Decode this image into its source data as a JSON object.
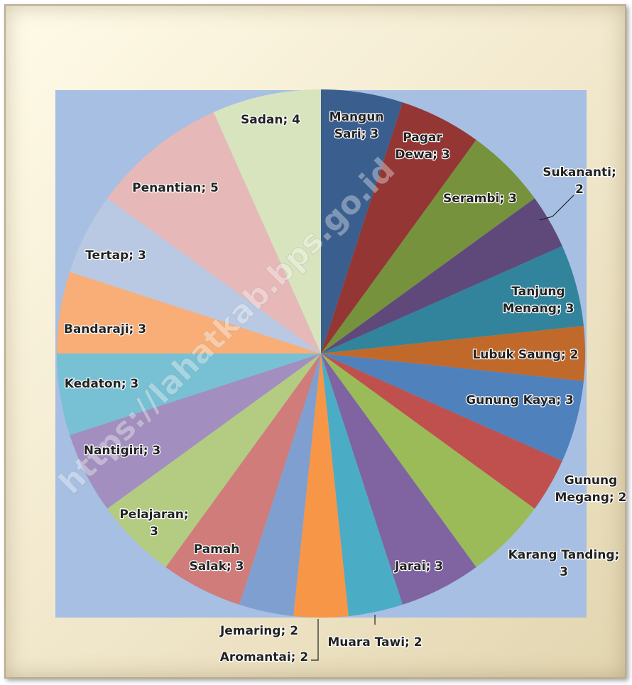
{
  "chart_data": {
    "type": "pie",
    "categories": [
      "Mangun Sari",
      "Pagar Dewa",
      "Serambi",
      "Sukananti",
      "Tanjung Menang",
      "Lubuk Saung",
      "Gunung Kaya",
      "Gunung Megang",
      "Karang Tanding",
      "Jarai",
      "Muara Tawi",
      "Aromantai",
      "Jemaring",
      "Pamah Salak",
      "Pelajaran",
      "Nantigiri",
      "Kedaton",
      "Bandaraji",
      "Tertap",
      "Penantian",
      "Sadan"
    ],
    "values": [
      3,
      3,
      3,
      2,
      3,
      2,
      3,
      2,
      3,
      3,
      2,
      2,
      2,
      3,
      3,
      3,
      3,
      3,
      3,
      5,
      4
    ],
    "value_labels": [
      "Mangun Sari; 3",
      "Pagar Dewa; 3",
      "Serambi; 3",
      "Sukananti; 2",
      "Tanjung Menang; 3",
      "Lubuk Saung; 2",
      "Gunung Kaya; 3",
      "Gunung Megang; 2",
      "Karang Tanding; 3",
      "Jarai; 3",
      "Muara Tawi; 2",
      "Aromantai; 2",
      "Jemaring; 2",
      "Pamah Salak; 3",
      "Pelajaran; 3",
      "Nantigiri; 3",
      "Kedaton; 3",
      "Bandaraji; 3",
      "Tertap; 3",
      "Penantian; 5",
      "Sadan; 4"
    ],
    "colors": [
      "#3a5f8f",
      "#943634",
      "#76923c",
      "#5f497a",
      "#31849b",
      "#c0692b",
      "#4f81bd",
      "#c0504d",
      "#9bbb59",
      "#8064a2",
      "#4bacc6",
      "#f79646",
      "#7f9fd0",
      "#d07c7a",
      "#b3cc82",
      "#a28fbf",
      "#78c0d4",
      "#f9ae78",
      "#b9c9e3",
      "#e6b9b8",
      "#d7e4bd"
    ],
    "watermark": "https://lahatkab.bps.go.id"
  }
}
